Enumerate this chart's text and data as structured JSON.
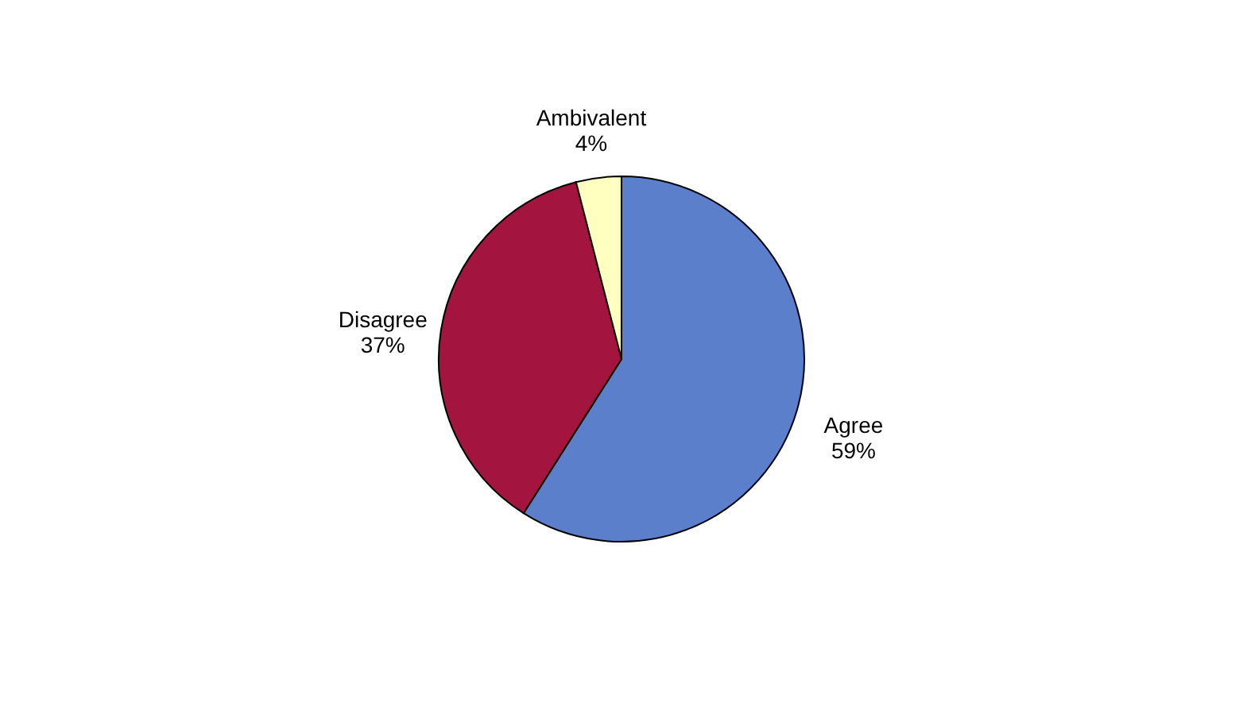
{
  "chart_data": {
    "type": "pie",
    "categories": [
      "Agree",
      "Disagree",
      "Ambivalent"
    ],
    "values": [
      59,
      37,
      4
    ],
    "value_labels": [
      "59%",
      "37%",
      "4%"
    ],
    "colors": [
      "#5b7fcb",
      "#a3143f",
      "#ffffc0"
    ],
    "legend": false
  }
}
